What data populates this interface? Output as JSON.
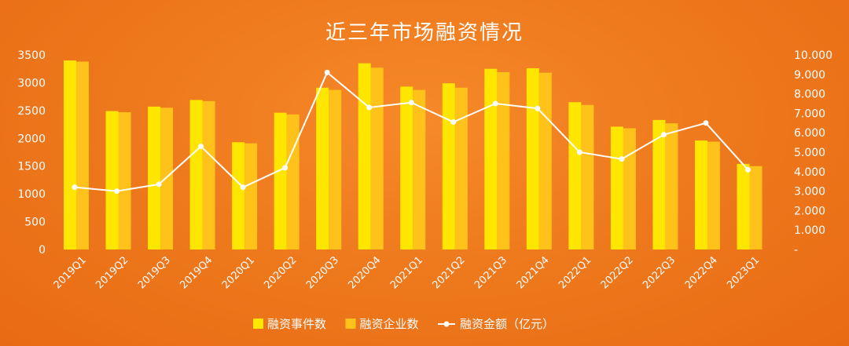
{
  "chart_data": {
    "type": "bar",
    "title": "近三年市场融资情况",
    "categories": [
      "2019Q1",
      "2019Q2",
      "2019Q3",
      "2019Q4",
      "2020Q1",
      "2020Q2",
      "2020Q3",
      "2020Q4",
      "2021Q1",
      "2021Q2",
      "2021Q3",
      "2021Q4",
      "2022Q1",
      "2022Q2",
      "2022Q3",
      "2022Q4",
      "2023Q1"
    ],
    "series": [
      {
        "name": "融资事件数",
        "type": "bar",
        "axis": "left",
        "color": "#ffe600",
        "values": [
          3400,
          2490,
          2570,
          2690,
          1930,
          2460,
          2910,
          3350,
          2930,
          2990,
          3250,
          3260,
          2650,
          2210,
          2330,
          1960,
          1540
        ]
      },
      {
        "name": "融资企业数",
        "type": "bar",
        "axis": "left",
        "color": "#ffc21a",
        "values": [
          3380,
          2470,
          2550,
          2670,
          1910,
          2430,
          2870,
          3270,
          2870,
          2910,
          3190,
          3180,
          2600,
          2180,
          2270,
          1940,
          1500
        ]
      },
      {
        "name": "融资金额（亿元）",
        "type": "line",
        "axis": "right",
        "color": "#ffffff",
        "values": [
          3.2,
          3.0,
          3.35,
          5.3,
          3.2,
          4.2,
          9.1,
          7.3,
          7.55,
          6.55,
          7.5,
          7.25,
          5.0,
          4.65,
          5.9,
          6.5,
          4.1
        ]
      }
    ],
    "left_axis": {
      "ylim": [
        0,
        3500
      ],
      "ticks": [
        "0",
        "500",
        "1000",
        "1500",
        "2000",
        "2500",
        "3000",
        "3500"
      ]
    },
    "right_axis": {
      "ylim": [
        0,
        10
      ],
      "ticks": [
        "-",
        "1.000",
        "2.000",
        "3.000",
        "4.000",
        "5.000",
        "6.000",
        "7.000",
        "8.000",
        "9.000",
        "10.000"
      ]
    },
    "grid": false,
    "legend_position": "bottom-center"
  }
}
